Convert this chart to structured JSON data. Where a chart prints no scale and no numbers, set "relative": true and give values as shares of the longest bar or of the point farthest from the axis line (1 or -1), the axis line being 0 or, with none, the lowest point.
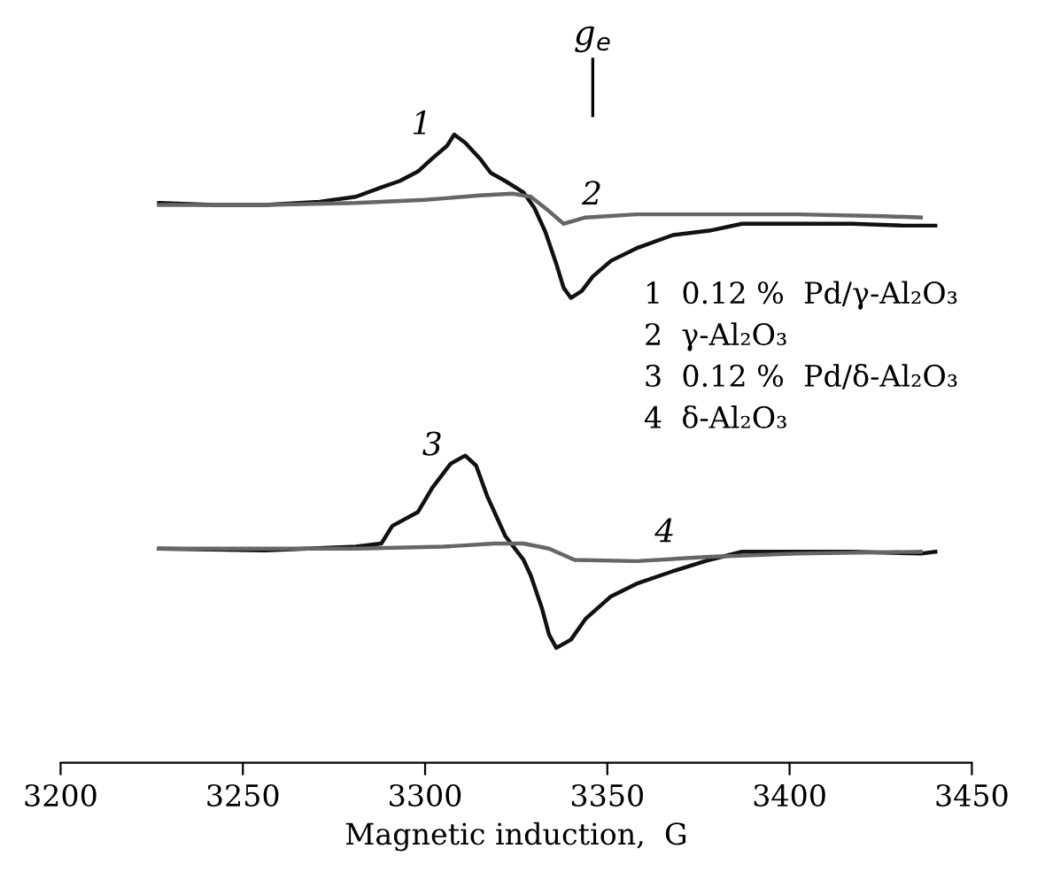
{
  "chart_data": {
    "type": "line",
    "xlabel": "Magnetic induction,  G",
    "relative": true,
    "xlim": [
      3200,
      3450
    ],
    "xticks": [
      3200,
      3250,
      3300,
      3350,
      3400,
      3450
    ],
    "tick_labels": "x",
    "grid": false,
    "legend": false,
    "ref_lines": [
      {
        "axis": "x",
        "value": 3346,
        "label": "g$_{e}$"
      }
    ],
    "series": [
      {
        "name": "1",
        "color": "#111111",
        "x": [
          3227,
          3242,
          3256,
          3271,
          3281,
          3288,
          3293,
          3298,
          3302,
          3306,
          3308,
          3311,
          3315,
          3318,
          3322,
          3327,
          3330,
          3333,
          3336,
          3338,
          3340,
          3343,
          3346,
          3351,
          3358,
          3368,
          3378,
          3387,
          3402,
          3417,
          3431,
          3440
        ],
        "values": [
          0.891,
          0.888,
          0.888,
          0.893,
          0.901,
          0.916,
          0.926,
          0.941,
          0.962,
          0.982,
          1.0,
          0.987,
          0.962,
          0.939,
          0.926,
          0.908,
          0.883,
          0.845,
          0.794,
          0.756,
          0.74,
          0.751,
          0.774,
          0.799,
          0.819,
          0.84,
          0.847,
          0.858,
          0.858,
          0.858,
          0.855,
          0.855
        ]
      },
      {
        "name": "2",
        "color": "#666666",
        "x": [
          3227,
          3256,
          3281,
          3300,
          3315,
          3324,
          3329,
          3334,
          3338,
          3344,
          3358,
          3378,
          3402,
          3426,
          3436
        ],
        "values": [
          0.888,
          0.888,
          0.891,
          0.896,
          0.903,
          0.906,
          0.901,
          0.878,
          0.858,
          0.868,
          0.873,
          0.873,
          0.873,
          0.87,
          0.868
        ]
      },
      {
        "name": "3",
        "color": "#111111",
        "x": [
          3227,
          3256,
          3281,
          3288,
          3291,
          3298,
          3302,
          3307,
          3311,
          3314,
          3317,
          3322,
          3327,
          3329,
          3332,
          3334,
          3336,
          3340,
          3344,
          3351,
          3358,
          3368,
          3378,
          3387,
          3402,
          3417,
          3436,
          3440
        ],
        "values": [
          0.341,
          0.338,
          0.344,
          0.349,
          0.377,
          0.399,
          0.438,
          0.476,
          0.489,
          0.473,
          0.425,
          0.361,
          0.323,
          0.298,
          0.247,
          0.204,
          0.183,
          0.196,
          0.229,
          0.265,
          0.285,
          0.305,
          0.323,
          0.336,
          0.336,
          0.336,
          0.333,
          0.336
        ]
      },
      {
        "name": "4",
        "color": "#666666",
        "x": [
          3227,
          3256,
          3281,
          3305,
          3319,
          3327,
          3334,
          3341,
          3358,
          3378,
          3402,
          3436
        ],
        "values": [
          0.341,
          0.341,
          0.341,
          0.344,
          0.349,
          0.349,
          0.341,
          0.323,
          0.321,
          0.328,
          0.333,
          0.336
        ]
      }
    ],
    "annotations": [
      "1  0.12 %  Pd/γ-Al₂O₃",
      "2  γ-Al₂O₃",
      "3  0.12 %  Pd/δ-Al₂O₃",
      "4  δ-Al₂O₃"
    ]
  }
}
